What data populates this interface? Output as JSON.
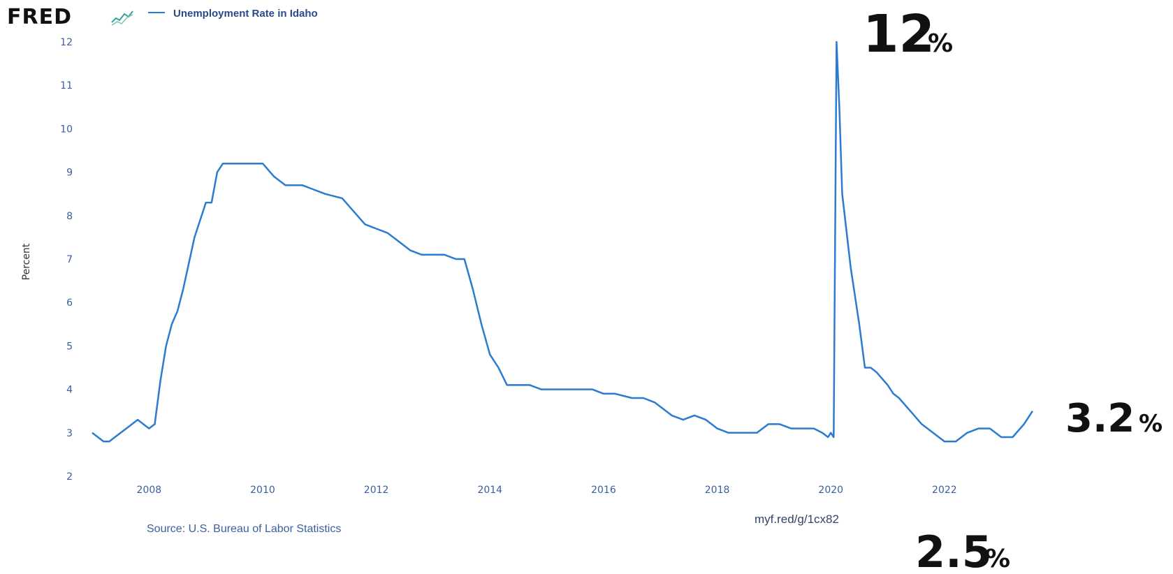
{
  "header": {
    "logo": "FRED",
    "series_name": "Unemployment Rate in Idaho"
  },
  "colors": {
    "series": "#2b7bd0",
    "ticks": "#3a5fa0",
    "logo_chart_icon": "#3aa0a0"
  },
  "footer": {
    "source": "Source: U.S. Bureau of Labor Statistics",
    "link": "myf.red/g/1cx82"
  },
  "annotations": [
    {
      "number": "12",
      "unit": "%"
    },
    {
      "number": "3.2",
      "unit": "%"
    },
    {
      "number": "2.5",
      "unit": "%"
    }
  ],
  "chart_data": {
    "type": "line",
    "title": "",
    "ylabel": "Percent",
    "xlabel": "",
    "ylim": [
      2,
      12
    ],
    "xlim": [
      2007.0,
      2023.6
    ],
    "yticks": [
      "2",
      "3",
      "4",
      "5",
      "6",
      "7",
      "8",
      "9",
      "10",
      "11",
      "12"
    ],
    "xticks": [
      "2008",
      "2010",
      "2012",
      "2014",
      "2016",
      "2018",
      "2020",
      "2022"
    ],
    "grid": false,
    "series": [
      {
        "name": "Unemployment Rate in Idaho",
        "x": [
          2007.0,
          2007.1,
          2007.2,
          2007.3,
          2007.4,
          2007.6,
          2007.8,
          2007.9,
          2008.0,
          2008.1,
          2008.2,
          2008.3,
          2008.4,
          2008.5,
          2008.6,
          2008.8,
          2009.0,
          2009.1,
          2009.2,
          2009.3,
          2009.4,
          2009.5,
          2009.7,
          2010.0,
          2010.2,
          2010.4,
          2010.7,
          2010.9,
          2011.1,
          2011.4,
          2011.6,
          2011.8,
          2012.0,
          2012.2,
          2012.4,
          2012.6,
          2012.8,
          2013.0,
          2013.2,
          2013.4,
          2013.55,
          2013.7,
          2013.85,
          2014.0,
          2014.15,
          2014.3,
          2014.4,
          2014.7,
          2014.9,
          2015.0,
          2015.2,
          2015.6,
          2015.8,
          2016.0,
          2016.2,
          2016.5,
          2016.7,
          2016.9,
          2017.0,
          2017.2,
          2017.4,
          2017.6,
          2017.8,
          2018.0,
          2018.2,
          2018.5,
          2018.7,
          2018.9,
          2019.1,
          2019.3,
          2019.5,
          2019.7,
          2019.85,
          2019.95,
          2020.0,
          2020.05,
          2020.1,
          2020.15,
          2020.2,
          2020.35,
          2020.5,
          2020.6,
          2020.7,
          2020.8,
          2021.0,
          2021.1,
          2021.2,
          2021.4,
          2021.6,
          2021.8,
          2022.0,
          2022.2,
          2022.4,
          2022.6,
          2022.8,
          2023.0,
          2023.2,
          2023.4,
          2023.55
        ],
        "values": [
          3.0,
          2.9,
          2.8,
          2.8,
          2.9,
          3.1,
          3.3,
          3.2,
          3.1,
          3.2,
          4.2,
          5.0,
          5.5,
          5.8,
          6.3,
          7.5,
          8.3,
          8.3,
          9.0,
          9.2,
          9.2,
          9.2,
          9.2,
          9.2,
          8.9,
          8.7,
          8.7,
          8.6,
          8.5,
          8.4,
          8.1,
          7.8,
          7.7,
          7.6,
          7.4,
          7.2,
          7.1,
          7.1,
          7.1,
          7.0,
          7.0,
          6.3,
          5.5,
          4.8,
          4.5,
          4.1,
          4.1,
          4.1,
          4.0,
          4.0,
          4.0,
          4.0,
          4.0,
          3.9,
          3.9,
          3.8,
          3.8,
          3.7,
          3.6,
          3.4,
          3.3,
          3.4,
          3.3,
          3.1,
          3.0,
          3.0,
          3.0,
          3.2,
          3.2,
          3.1,
          3.1,
          3.1,
          3.0,
          2.9,
          3.0,
          2.9,
          12.0,
          10.5,
          8.5,
          6.8,
          5.5,
          4.5,
          4.5,
          4.4,
          4.1,
          3.9,
          3.8,
          3.5,
          3.2,
          3.0,
          2.8,
          2.8,
          3.0,
          3.1,
          3.1,
          2.9,
          2.9,
          3.2,
          3.5
        ]
      }
    ]
  }
}
